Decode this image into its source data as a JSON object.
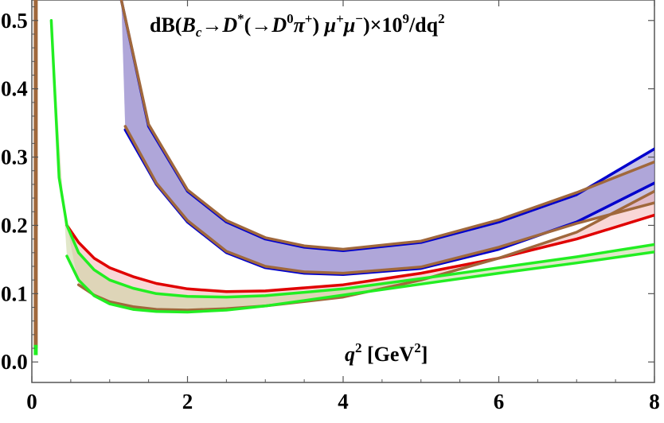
{
  "chart_data": {
    "type": "line",
    "title": {
      "t1": "dB(",
      "t2": "B",
      "t3": "c",
      "t4": "→",
      "t5": "D",
      "t6": "*",
      "t7": "(→",
      "t8": "D",
      "t9": "0",
      "t10": "π",
      "t11": "+",
      "t12": ") ",
      "t13": "μ",
      "t14": "+",
      "t15": "μ",
      "t16": "−",
      "t17": ")×10",
      "t18": "9",
      "t19": "/dq",
      "t20": "2"
    },
    "xlabel": {
      "q": "q",
      "qexp": "2",
      "unit": " [GeV",
      "unitexp": "2",
      "close": "]"
    },
    "xlim": [
      0,
      8
    ],
    "ylim": [
      -0.03,
      0.53
    ],
    "xticks": [
      "0",
      "2",
      "4",
      "6",
      "8"
    ],
    "yticks": [
      "0.0",
      "0.1",
      "0.2",
      "0.3",
      "0.4",
      "0.5"
    ],
    "frame": true,
    "grid": false,
    "bands": [
      {
        "fill": "#9b8fd0",
        "upper": {
          "color": "#0000cc",
          "x": [
            1.15,
            1.5,
            2,
            2.5,
            3,
            3.5,
            4,
            5,
            6,
            7,
            8
          ],
          "y": [
            0.53,
            0.345,
            0.25,
            0.205,
            0.18,
            0.168,
            0.163,
            0.175,
            0.205,
            0.245,
            0.312
          ]
        },
        "lower": {
          "color": "#0000cc",
          "x": [
            1.2,
            1.6,
            2,
            2.5,
            3,
            3.5,
            4,
            5,
            6,
            7,
            8
          ],
          "y": [
            0.34,
            0.26,
            0.205,
            0.16,
            0.138,
            0.13,
            0.128,
            0.137,
            0.165,
            0.205,
            0.262
          ]
        }
      },
      {
        "fill": "#9b8fd0",
        "upper": {
          "color": "#a0683c",
          "x": [
            1.15,
            1.5,
            2,
            2.5,
            3,
            3.5,
            4,
            5,
            6,
            7,
            8
          ],
          "y": [
            0.53,
            0.348,
            0.252,
            0.207,
            0.182,
            0.17,
            0.165,
            0.177,
            0.208,
            0.248,
            0.293
          ]
        },
        "lower": {
          "color": "#a0683c",
          "x": [
            1.2,
            1.6,
            2,
            2.5,
            3,
            3.5,
            4,
            5,
            6,
            7,
            8
          ],
          "y": [
            0.345,
            0.262,
            0.207,
            0.162,
            0.14,
            0.132,
            0.13,
            0.139,
            0.168,
            0.203,
            0.233
          ]
        }
      },
      {
        "fill": "#f4b7b7",
        "upper": {
          "color": "#e00000",
          "x": [
            0.45,
            0.6,
            0.8,
            1,
            1.3,
            1.6,
            2,
            2.5,
            3,
            4,
            5,
            6,
            7,
            8
          ],
          "y": [
            0.2,
            0.175,
            0.152,
            0.138,
            0.125,
            0.115,
            0.107,
            0.103,
            0.104,
            0.113,
            0.13,
            0.152,
            0.18,
            0.215
          ]
        },
        "lower": {
          "color": "#a0683c",
          "x": [
            0.6,
            0.8,
            1,
            1.3,
            1.6,
            2,
            2.5,
            3,
            4,
            5,
            6,
            7,
            8
          ],
          "y": [
            0.113,
            0.098,
            0.088,
            0.081,
            0.077,
            0.076,
            0.078,
            0.082,
            0.095,
            0.12,
            0.152,
            0.19,
            0.25
          ]
        }
      },
      {
        "fill": "#c9d49e",
        "upper": {
          "color": "#22ee22",
          "x": [
            0.25,
            0.35,
            0.45,
            0.6,
            0.8,
            1,
            1.3,
            1.6,
            2,
            2.5,
            3,
            4,
            5,
            6,
            7,
            8
          ],
          "y": [
            0.5,
            0.27,
            0.2,
            0.16,
            0.135,
            0.12,
            0.108,
            0.1,
            0.096,
            0.095,
            0.097,
            0.107,
            0.122,
            0.138,
            0.154,
            0.172
          ]
        },
        "lower": {
          "color": "#22ee22",
          "x": [
            0.45,
            0.6,
            0.8,
            1,
            1.3,
            1.6,
            2,
            2.5,
            3,
            4,
            5,
            6,
            7,
            8
          ],
          "y": [
            0.155,
            0.12,
            0.097,
            0.085,
            0.077,
            0.074,
            0.073,
            0.076,
            0.082,
            0.098,
            0.114,
            0.13,
            0.145,
            0.161
          ]
        }
      }
    ],
    "spikes": [
      {
        "color": "#a0683c",
        "x": 0.05,
        "y": [
          0.02,
          0.53
        ]
      },
      {
        "color": "#22ee22",
        "x": 0.05,
        "y": [
          0.01,
          0.025
        ]
      }
    ]
  }
}
